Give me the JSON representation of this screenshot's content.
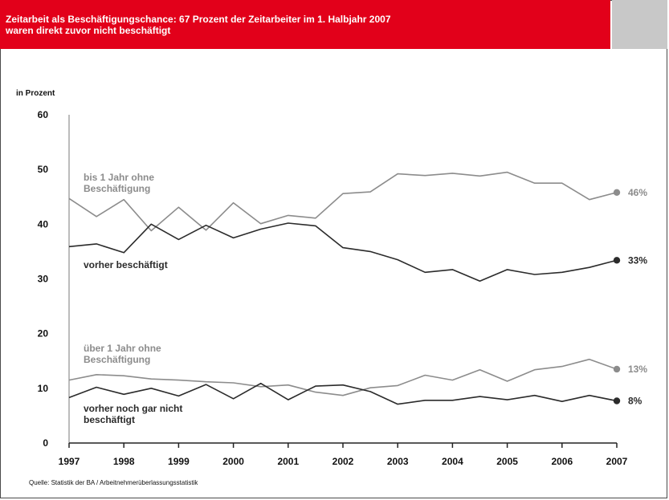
{
  "header": {
    "title": "Zeitarbeit als Beschäftigungschance: 67 Prozent der Zeitarbeiter im 1. Halbjahr 2007\nwaren direkt zuvor nicht beschäftigt"
  },
  "source": "Quelle: Statistik der BA / Arbeitnehmerüberlassungsstatistik",
  "colors": {
    "accent": "#e2001a",
    "dark": "#2b2b2b",
    "gray": "#8c8c8c"
  },
  "chart_data": {
    "type": "line",
    "title": "Zeitarbeit als Beschäftigungschance: 67 Prozent der Zeitarbeiter im 1. Halbjahr 2007 waren direkt zuvor nicht beschäftigt",
    "ylabel": "in Prozent",
    "xlabel": "",
    "ylim": [
      0,
      60
    ],
    "yticks": [
      "0",
      "10",
      "20",
      "30",
      "40",
      "50",
      "60"
    ],
    "x_tick_labels": [
      "1997",
      "1998",
      "1999",
      "2000",
      "2001",
      "2002",
      "2003",
      "2004",
      "2005",
      "2006",
      "2007"
    ],
    "x": [
      "1997/1",
      "1997/2",
      "1998/1",
      "1998/2",
      "1999/1",
      "1999/2",
      "2000/1",
      "2000/2",
      "2001/1",
      "2001/2",
      "2002/1",
      "2002/2",
      "2003/1",
      "2003/2",
      "2004/1",
      "2004/2",
      "2005/1",
      "2005/2",
      "2006/1",
      "2006/2",
      "2007/1"
    ],
    "grid": false,
    "series": [
      {
        "name": "bis 1 Jahr ohne Beschäftigung",
        "label_lines": [
          "bis 1 Jahr ohne",
          "Beschäftigung"
        ],
        "color": "#8c8c8c",
        "end_label": "46%",
        "values": [
          44.7,
          41.4,
          44.5,
          38.8,
          43.1,
          38.9,
          43.9,
          40.1,
          41.6,
          41.1,
          45.6,
          45.9,
          49.2,
          48.9,
          49.3,
          48.8,
          49.5,
          47.5,
          47.5,
          44.5,
          45.8
        ]
      },
      {
        "name": "vorher beschäftigt",
        "label_lines": [
          "vorher beschäftigt"
        ],
        "color": "#2b2b2b",
        "end_label": "33%",
        "values": [
          35.9,
          36.4,
          34.8,
          40.0,
          37.2,
          39.8,
          37.5,
          39.1,
          40.2,
          39.7,
          35.7,
          35.0,
          33.5,
          31.2,
          31.7,
          29.6,
          31.7,
          30.8,
          31.2,
          32.1,
          33.4
        ]
      },
      {
        "name": "über 1 Jahr ohne Beschäftigung",
        "label_lines": [
          "über 1 Jahr ohne",
          "Beschäftigung"
        ],
        "color": "#8c8c8c",
        "end_label": "13%",
        "values": [
          11.5,
          12.5,
          12.3,
          11.7,
          11.5,
          11.2,
          11.0,
          10.3,
          10.6,
          9.3,
          8.7,
          10.1,
          10.5,
          12.4,
          11.5,
          13.4,
          11.3,
          13.4,
          14.0,
          15.3,
          13.5
        ]
      },
      {
        "name": "vorher noch gar nicht beschäftigt",
        "label_lines": [
          "vorher noch gar nicht",
          "beschäftigt"
        ],
        "color": "#2b2b2b",
        "end_label": "8%",
        "values": [
          8.3,
          10.2,
          8.9,
          10.0,
          8.6,
          10.7,
          8.1,
          10.9,
          7.9,
          10.4,
          10.6,
          9.4,
          7.1,
          7.8,
          7.8,
          8.5,
          7.9,
          8.7,
          7.6,
          8.7,
          7.7
        ]
      }
    ]
  }
}
